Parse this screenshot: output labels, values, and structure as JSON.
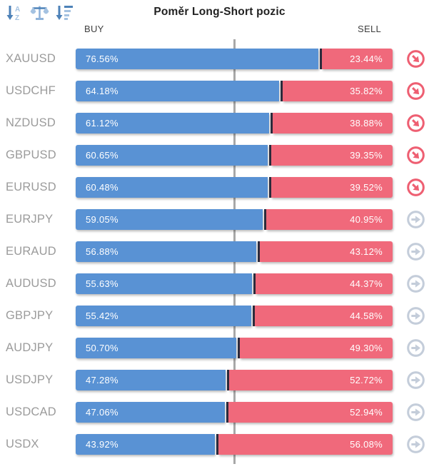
{
  "header": {
    "title": "Poměr Long-Short pozic",
    "buy_label": "BUY",
    "sell_label": "SELL",
    "sort_icons": [
      {
        "name": "sort-alpha-icon"
      },
      {
        "name": "balance-scale-icon"
      },
      {
        "name": "sort-amount-icon"
      }
    ]
  },
  "rows": [
    {
      "pair": "XAUUSD",
      "buy_label": "76.56%",
      "sell_label": "23.44%",
      "signal": "down"
    },
    {
      "pair": "USDCHF",
      "buy_label": "64.18%",
      "sell_label": "35.82%",
      "signal": "down"
    },
    {
      "pair": "NZDUSD",
      "buy_label": "61.12%",
      "sell_label": "38.88%",
      "signal": "down"
    },
    {
      "pair": "GBPUSD",
      "buy_label": "60.65%",
      "sell_label": "39.35%",
      "signal": "down"
    },
    {
      "pair": "EURUSD",
      "buy_label": "60.48%",
      "sell_label": "39.52%",
      "signal": "down"
    },
    {
      "pair": "EURJPY",
      "buy_label": "59.05%",
      "sell_label": "40.95%",
      "signal": "neutral"
    },
    {
      "pair": "EURAUD",
      "buy_label": "56.88%",
      "sell_label": "43.12%",
      "signal": "neutral"
    },
    {
      "pair": "AUDUSD",
      "buy_label": "55.63%",
      "sell_label": "44.37%",
      "signal": "neutral"
    },
    {
      "pair": "GBPJPY",
      "buy_label": "55.42%",
      "sell_label": "44.58%",
      "signal": "neutral"
    },
    {
      "pair": "AUDJPY",
      "buy_label": "50.70%",
      "sell_label": "49.30%",
      "signal": "neutral"
    },
    {
      "pair": "USDJPY",
      "buy_label": "47.28%",
      "sell_label": "52.72%",
      "signal": "neutral"
    },
    {
      "pair": "USDCAD",
      "buy_label": "47.06%",
      "sell_label": "52.94%",
      "signal": "neutral"
    },
    {
      "pair": "USDX",
      "buy_label": "43.92%",
      "sell_label": "56.08%",
      "signal": "neutral"
    }
  ],
  "chart_data": {
    "type": "bar",
    "orientation": "horizontal-stacked",
    "title": "Poměr Long-Short pozic",
    "categories": [
      "XAUUSD",
      "USDCHF",
      "NZDUSD",
      "GBPUSD",
      "EURUSD",
      "EURJPY",
      "EURAUD",
      "AUDUSD",
      "GBPJPY",
      "AUDJPY",
      "USDJPY",
      "USDCAD",
      "USDX"
    ],
    "series": [
      {
        "name": "BUY",
        "values": [
          76.56,
          64.18,
          61.12,
          60.65,
          60.48,
          59.05,
          56.88,
          55.63,
          55.42,
          50.7,
          47.28,
          47.06,
          43.92
        ]
      },
      {
        "name": "SELL",
        "values": [
          23.44,
          35.82,
          38.88,
          39.35,
          39.52,
          40.95,
          43.12,
          44.37,
          44.58,
          49.3,
          52.72,
          52.94,
          56.08
        ]
      }
    ],
    "xlim": [
      0,
      100
    ],
    "midline": 50,
    "colors": {
      "buy": "#5992d4",
      "sell": "#f0697b",
      "divider": "#2c2c3e",
      "midline": "#a8a8a8",
      "signal_down": "#ee5f72",
      "signal_neutral": "#c4cdda"
    },
    "legend_position": "top",
    "grid": false
  }
}
